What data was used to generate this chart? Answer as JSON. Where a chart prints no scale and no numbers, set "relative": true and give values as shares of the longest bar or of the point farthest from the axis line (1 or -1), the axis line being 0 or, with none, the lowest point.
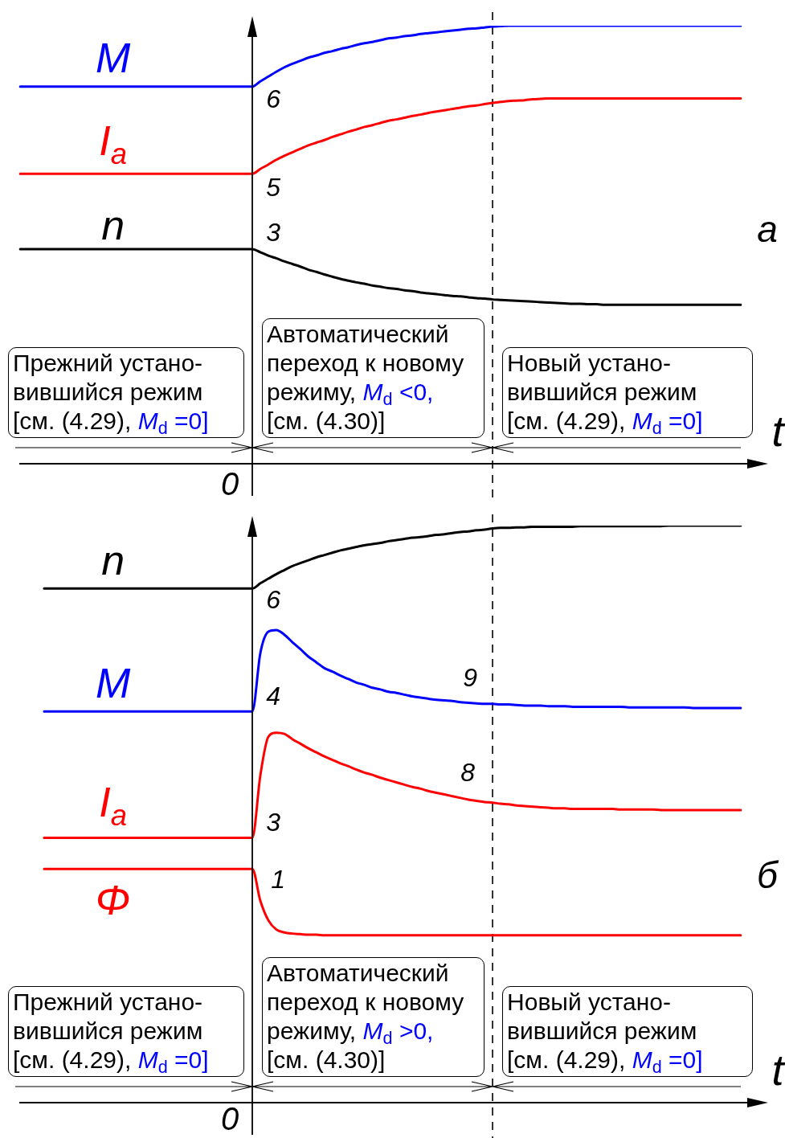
{
  "chart_data": [
    {
      "type": "line",
      "title": "а",
      "xlabel": "t",
      "relative": true,
      "grid": false,
      "legend": false,
      "marker": "none",
      "tick_labels": false,
      "categories": [
        null,
        null,
        null,
        null,
        null,
        null,
        null,
        null,
        null,
        null,
        null,
        null,
        null,
        null,
        null,
        null,
        null,
        null,
        null,
        null,
        null,
        null,
        null,
        null,
        null,
        null,
        null,
        null,
        null,
        null,
        null,
        null,
        null,
        null,
        null,
        null,
        null,
        null,
        null,
        null,
        null,
        null,
        null,
        null,
        null,
        null,
        null,
        null,
        null,
        null,
        null,
        null,
        null,
        null,
        null,
        null,
        null,
        null,
        null,
        null,
        null,
        null,
        null,
        null,
        null,
        null,
        null,
        null,
        null,
        null,
        null,
        null,
        null,
        null,
        null,
        null,
        null,
        null,
        null,
        null,
        null,
        null,
        null,
        null,
        null,
        null,
        null,
        null,
        null,
        null,
        null
      ],
      "series": [
        {
          "name": "M",
          "color": "#0000ff",
          "values": [
            0.861,
            0.861,
            0.861,
            0.861,
            0.861,
            0.861,
            0.861,
            0.861,
            0.861,
            0.861,
            0.861,
            0.861,
            0.861,
            0.861,
            0.861,
            0.861,
            0.861,
            0.861,
            0.861,
            0.861,
            0.861,
            0.861,
            0.861,
            0.861,
            0.861,
            0.861,
            0.861,
            0.861,
            0.861,
            0.861,
            0.873,
            0.884,
            0.895,
            0.905,
            0.913,
            0.92,
            0.927,
            0.932,
            0.938,
            0.942,
            0.947,
            0.951,
            0.956,
            0.96,
            0.963,
            0.967,
            0.971,
            0.973,
            0.976,
            0.978,
            0.981,
            0.983,
            0.985,
            0.987,
            0.989,
            0.991,
            0.993,
            0.994,
            0.996,
            0.998,
            0.999,
            1,
            1,
            1,
            1,
            1,
            1,
            1,
            1,
            1,
            1,
            1,
            1,
            1,
            1,
            1,
            1,
            1,
            1,
            1,
            1,
            1,
            1,
            1,
            1,
            1,
            1,
            1,
            1,
            1,
            1
          ]
        },
        {
          "name": "I$_{a}$",
          "color": "#ff0000",
          "values": [
            0.662,
            0.662,
            0.662,
            0.662,
            0.662,
            0.662,
            0.662,
            0.662,
            0.662,
            0.662,
            0.662,
            0.662,
            0.662,
            0.662,
            0.662,
            0.662,
            0.662,
            0.662,
            0.662,
            0.662,
            0.662,
            0.662,
            0.662,
            0.662,
            0.662,
            0.662,
            0.662,
            0.662,
            0.662,
            0.662,
            0.673,
            0.683,
            0.694,
            0.703,
            0.711,
            0.719,
            0.727,
            0.733,
            0.739,
            0.746,
            0.752,
            0.758,
            0.763,
            0.769,
            0.773,
            0.778,
            0.783,
            0.786,
            0.79,
            0.794,
            0.797,
            0.801,
            0.804,
            0.807,
            0.81,
            0.813,
            0.816,
            0.818,
            0.821,
            0.824,
            0.826,
            0.828,
            0.829,
            0.83,
            0.832,
            0.833,
            0.834,
            0.834,
            0.834,
            0.834,
            0.834,
            0.834,
            0.834,
            0.834,
            0.834,
            0.834,
            0.834,
            0.834,
            0.834,
            0.834,
            0.834,
            0.834,
            0.834,
            0.834,
            0.834,
            0.834,
            0.834,
            0.834,
            0.834,
            0.834,
            0.834
          ]
        },
        {
          "name": "n",
          "color": "#000000",
          "values": [
            0.49,
            0.49,
            0.49,
            0.49,
            0.49,
            0.49,
            0.49,
            0.49,
            0.49,
            0.49,
            0.49,
            0.49,
            0.49,
            0.49,
            0.49,
            0.49,
            0.49,
            0.49,
            0.49,
            0.49,
            0.49,
            0.49,
            0.49,
            0.49,
            0.49,
            0.49,
            0.49,
            0.49,
            0.49,
            0.49,
            0.483,
            0.475,
            0.469,
            0.462,
            0.456,
            0.45,
            0.443,
            0.438,
            0.432,
            0.427,
            0.422,
            0.418,
            0.414,
            0.411,
            0.407,
            0.404,
            0.401,
            0.399,
            0.396,
            0.394,
            0.391,
            0.389,
            0.387,
            0.385,
            0.383,
            0.382,
            0.38,
            0.378,
            0.377,
            0.375,
            0.374,
            0.373,
            0.372,
            0.371,
            0.37,
            0.369,
            0.368,
            0.367,
            0.366,
            0.365,
            0.365,
            0.364,
            0.364,
            0.363,
            0.363,
            0.363,
            0.363,
            0.363,
            0.363,
            0.363,
            0.363,
            0.363,
            0.363,
            0.363,
            0.363,
            0.363,
            0.363,
            0.363,
            0.363,
            0.363,
            0.363
          ]
        }
      ],
      "annotations": [
        "6",
        "5",
        "3",
        "0",
        "Прежний устано-\nвившийся режим\n[см. (4.29), M$_{d}$ =0]",
        "Автоматический\nпереход к новому\nрежиму, M$_{d}$ <0,\n[см. (4.30)]",
        "Новый устано-\nвившийся режим\n[см. (4.29), M$_{d}$ =0]"
      ]
    },
    {
      "type": "line",
      "title": "б",
      "xlabel": "t",
      "relative": true,
      "grid": false,
      "legend": false,
      "marker": "none",
      "tick_labels": false,
      "categories": [
        null,
        null,
        null,
        null,
        null,
        null,
        null,
        null,
        null,
        null,
        null,
        null,
        null,
        null,
        null,
        null,
        null,
        null,
        null,
        null,
        null,
        null,
        null,
        null,
        null,
        null,
        null,
        null,
        null,
        null,
        null,
        null,
        null,
        null,
        null,
        null,
        null,
        null,
        null,
        null,
        null,
        null,
        null,
        null,
        null,
        null,
        null,
        null,
        null,
        null,
        null,
        null,
        null,
        null,
        null,
        null,
        null,
        null,
        null,
        null,
        null,
        null,
        null,
        null,
        null,
        null,
        null,
        null,
        null,
        null,
        null,
        null,
        null,
        null,
        null,
        null,
        null,
        null,
        null,
        null,
        null,
        null,
        null,
        null,
        null,
        null,
        null,
        null,
        null,
        null,
        null
      ],
      "series": [
        {
          "name": "n",
          "color": "#000000",
          "values": [
            null,
            null,
            null,
            0.891,
            0.891,
            0.891,
            0.891,
            0.891,
            0.891,
            0.891,
            0.891,
            0.891,
            0.891,
            0.891,
            0.891,
            0.891,
            0.891,
            0.891,
            0.891,
            0.891,
            0.891,
            0.891,
            0.891,
            0.891,
            0.891,
            0.891,
            0.891,
            0.891,
            0.891,
            0.891,
            0.9,
            0.908,
            0.916,
            0.923,
            0.93,
            0.935,
            0.94,
            0.945,
            0.949,
            0.953,
            0.957,
            0.96,
            0.963,
            0.966,
            0.968,
            0.97,
            0.973,
            0.975,
            0.977,
            0.979,
            0.98,
            0.982,
            0.984,
            0.985,
            0.987,
            0.989,
            0.99,
            0.992,
            0.993,
            0.995,
            0.996,
            0.996,
            0.997,
            0.997,
            0.998,
            0.998,
            0.998,
            0.998,
            0.998,
            0.998,
            0.999,
            0.999,
            0.999,
            0.999,
            0.999,
            0.999,
            0.999,
            0.999,
            0.999,
            0.999,
            0.999,
            1,
            1,
            1,
            1,
            1,
            1,
            1,
            1,
            1,
            1
          ]
        },
        {
          "name": "M",
          "color": "#0000ff",
          "values": [
            null,
            null,
            null,
            0.678,
            0.678,
            0.678,
            0.678,
            0.678,
            0.678,
            0.678,
            0.678,
            0.678,
            0.678,
            0.678,
            0.678,
            0.678,
            0.678,
            0.678,
            0.678,
            0.678,
            0.678,
            0.678,
            0.678,
            0.678,
            0.678,
            0.678,
            0.678,
            0.678,
            0.678,
            0.678,
            0.779,
            0.816,
            0.819,
            0.811,
            0.798,
            0.786,
            0.773,
            0.763,
            0.753,
            0.747,
            0.74,
            0.734,
            0.728,
            0.724,
            0.719,
            0.716,
            0.712,
            0.71,
            0.707,
            0.704,
            0.702,
            0.7,
            0.698,
            0.697,
            0.696,
            0.694,
            0.693,
            0.692,
            0.691,
            0.691,
            0.69,
            0.69,
            0.689,
            0.688,
            0.688,
            0.688,
            0.687,
            0.687,
            0.687,
            0.686,
            0.686,
            0.686,
            0.686,
            0.686,
            0.686,
            0.686,
            0.685,
            0.685,
            0.685,
            0.685,
            0.685,
            0.685,
            0.685,
            0.685,
            0.684,
            0.684,
            0.684,
            0.684,
            0.684,
            0.684,
            0.684
          ]
        },
        {
          "name": "I$_{a}$",
          "color": "#ff0000",
          "values": [
            null,
            null,
            null,
            0.459,
            0.459,
            0.459,
            0.459,
            0.459,
            0.459,
            0.459,
            0.459,
            0.459,
            0.459,
            0.459,
            0.459,
            0.459,
            0.459,
            0.459,
            0.459,
            0.459,
            0.459,
            0.459,
            0.459,
            0.459,
            0.459,
            0.459,
            0.459,
            0.459,
            0.459,
            0.459,
            0.567,
            0.634,
            0.641,
            0.639,
            0.63,
            0.622,
            0.614,
            0.607,
            0.6,
            0.594,
            0.588,
            0.583,
            0.577,
            0.572,
            0.568,
            0.563,
            0.559,
            0.555,
            0.551,
            0.547,
            0.544,
            0.54,
            0.537,
            0.534,
            0.531,
            0.528,
            0.525,
            0.523,
            0.521,
            0.52,
            0.518,
            0.517,
            0.515,
            0.514,
            0.513,
            0.512,
            0.511,
            0.51,
            0.51,
            0.509,
            0.509,
            0.509,
            0.509,
            0.509,
            0.509,
            0.508,
            0.508,
            0.508,
            0.508,
            0.508,
            0.507,
            0.507,
            0.507,
            0.507,
            0.507,
            0.507,
            0.507,
            0.507,
            0.507,
            0.507,
            0.507
          ]
        },
        {
          "name": "Φ",
          "color": "#ff0000",
          "values": [
            null,
            null,
            null,
            0.405,
            0.405,
            0.405,
            0.405,
            0.405,
            0.405,
            0.405,
            0.405,
            0.405,
            0.405,
            0.405,
            0.405,
            0.405,
            0.405,
            0.405,
            0.405,
            0.405,
            0.405,
            0.405,
            0.405,
            0.405,
            0.405,
            0.405,
            0.405,
            0.405,
            0.405,
            0.405,
            0.35,
            0.316,
            0.3,
            0.295,
            0.293,
            0.292,
            0.291,
            0.291,
            0.29,
            0.29,
            0.29,
            0.29,
            0.29,
            0.29,
            0.29,
            0.29,
            0.29,
            0.29,
            0.29,
            0.29,
            0.29,
            0.29,
            0.29,
            0.29,
            0.29,
            0.29,
            0.29,
            0.29,
            0.29,
            0.29,
            0.29,
            0.29,
            0.29,
            0.29,
            0.29,
            0.29,
            0.29,
            0.29,
            0.29,
            0.29,
            0.29,
            0.29,
            0.29,
            0.29,
            0.29,
            0.29,
            0.29,
            0.29,
            0.29,
            0.29,
            0.29,
            0.29,
            0.29,
            0.29,
            0.29,
            0.29,
            0.29,
            0.29,
            0.29,
            0.29,
            0.29
          ]
        }
      ],
      "annotations": [
        "6",
        "4",
        "3",
        "1",
        "9",
        "8",
        "0",
        "Прежний устано-\nвившийся режим\n[см. (4.29), M$_{d}$ =0]",
        "Автоматический\nпереход к новому\nрежиму, M$_{d}$ >0,\n[см. (4.30)]",
        "Новый устано-\nвившийся режим\n[см. (4.29), M$_{d}$ =0]"
      ]
    }
  ]
}
